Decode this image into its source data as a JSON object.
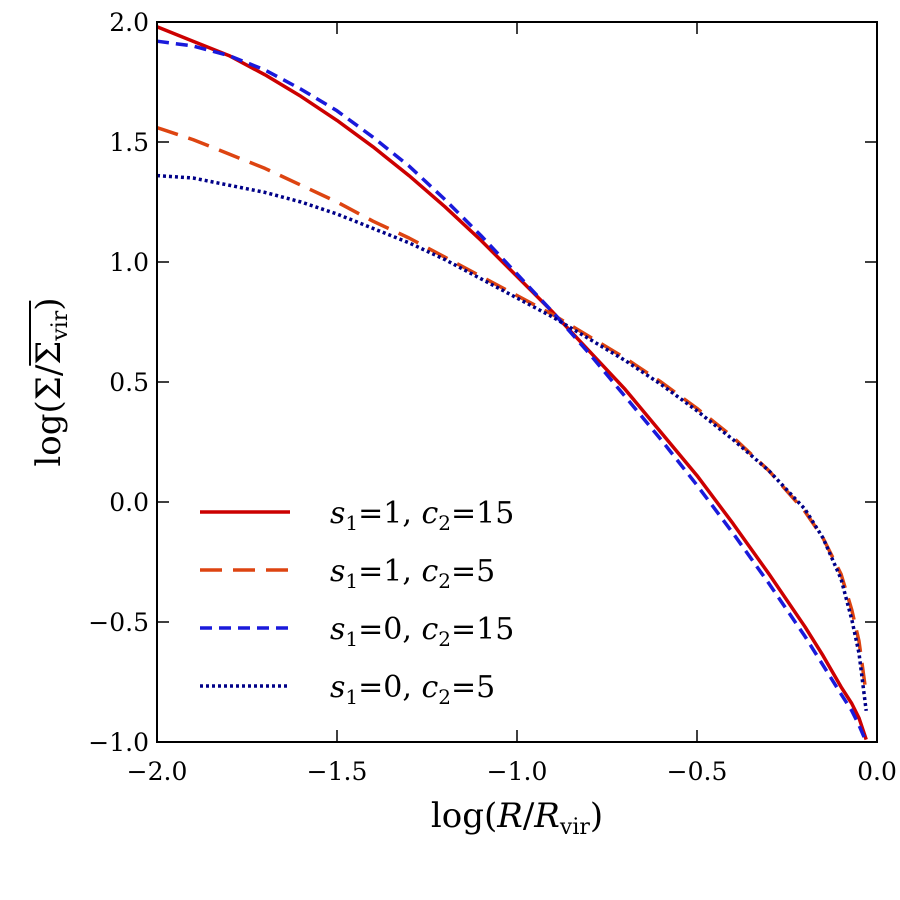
{
  "chart_data": {
    "type": "line",
    "title": "",
    "xlabel": {
      "prefix": "log(",
      "var": "R",
      "mid": "/",
      "var2": "R",
      "sub": "vir",
      "suffix": ")"
    },
    "ylabel": {
      "prefix": "log(Σ/",
      "bar_var": "Σ",
      "sub": "vir",
      "suffix": ")"
    },
    "xlim": [
      -2.0,
      0.0
    ],
    "ylim": [
      -1.0,
      2.0
    ],
    "x_ticks": [
      -2.0,
      -1.5,
      -1.0,
      -0.5,
      0.0
    ],
    "x_tick_labels": [
      "−2.0",
      "−1.5",
      "−1.0",
      "−0.5",
      "0.0"
    ],
    "y_ticks": [
      -1.0,
      -0.5,
      0.0,
      0.5,
      1.0,
      1.5,
      2.0
    ],
    "y_tick_labels": [
      "−1.0",
      "−0.5",
      "0.0",
      "0.5",
      "1.0",
      "1.5",
      "2.0"
    ],
    "grid": false,
    "legend_position": "lower-left",
    "series": [
      {
        "name": "s1=1, c2=15",
        "label": {
          "s": "s",
          "s_sub": "1",
          "s_val": "=1, ",
          "c": "c",
          "c_sub": "2",
          "c_val": "=15"
        },
        "color": "#cc0000",
        "style": "solid",
        "x": [
          -2.0,
          -1.9,
          -1.8,
          -1.7,
          -1.6,
          -1.5,
          -1.4,
          -1.3,
          -1.2,
          -1.1,
          -1.0,
          -0.9,
          -0.8,
          -0.7,
          -0.6,
          -0.5,
          -0.4,
          -0.3,
          -0.2,
          -0.15,
          -0.1,
          -0.07,
          -0.05,
          -0.03
        ],
        "y": [
          1.98,
          1.92,
          1.86,
          1.78,
          1.69,
          1.59,
          1.48,
          1.36,
          1.23,
          1.09,
          0.94,
          0.79,
          0.63,
          0.47,
          0.29,
          0.11,
          -0.09,
          -0.3,
          -0.52,
          -0.64,
          -0.77,
          -0.84,
          -0.9,
          -0.99
        ]
      },
      {
        "name": "s1=1, c2=5",
        "label": {
          "s": "s",
          "s_sub": "1",
          "s_val": "=1, ",
          "c": "c",
          "c_sub": "2",
          "c_val": "=5"
        },
        "color": "#dd4411",
        "style": "long-dash",
        "x": [
          -2.0,
          -1.9,
          -1.8,
          -1.7,
          -1.6,
          -1.5,
          -1.4,
          -1.3,
          -1.2,
          -1.1,
          -1.0,
          -0.9,
          -0.8,
          -0.7,
          -0.6,
          -0.5,
          -0.4,
          -0.3,
          -0.2,
          -0.15,
          -0.1,
          -0.07,
          -0.05,
          -0.03
        ],
        "y": [
          1.56,
          1.51,
          1.45,
          1.39,
          1.32,
          1.25,
          1.17,
          1.1,
          1.02,
          0.94,
          0.86,
          0.78,
          0.69,
          0.6,
          0.5,
          0.39,
          0.27,
          0.13,
          -0.04,
          -0.15,
          -0.3,
          -0.45,
          -0.58,
          -0.8
        ]
      },
      {
        "name": "s1=0, c2=15",
        "label": {
          "s": "s",
          "s_sub": "1",
          "s_val": "=0, ",
          "c": "c",
          "c_sub": "2",
          "c_val": "=15"
        },
        "color": "#1a1adb",
        "style": "short-dash",
        "x": [
          -2.0,
          -1.9,
          -1.8,
          -1.7,
          -1.6,
          -1.5,
          -1.4,
          -1.3,
          -1.2,
          -1.1,
          -1.0,
          -0.9,
          -0.8,
          -0.7,
          -0.6,
          -0.5,
          -0.4,
          -0.3,
          -0.2,
          -0.15,
          -0.1,
          -0.07,
          -0.05,
          -0.03
        ],
        "y": [
          1.92,
          1.9,
          1.86,
          1.8,
          1.72,
          1.63,
          1.52,
          1.4,
          1.26,
          1.11,
          0.95,
          0.79,
          0.62,
          0.44,
          0.26,
          0.07,
          -0.13,
          -0.34,
          -0.56,
          -0.68,
          -0.8,
          -0.87,
          -0.93,
          -1.0
        ]
      },
      {
        "name": "s1=0, c2=5",
        "label": {
          "s": "s",
          "s_sub": "1",
          "s_val": "=0, ",
          "c": "c",
          "c_sub": "2",
          "c_val": "=5"
        },
        "color": "#000088",
        "style": "dotted",
        "x": [
          -2.0,
          -1.9,
          -1.8,
          -1.7,
          -1.6,
          -1.5,
          -1.4,
          -1.3,
          -1.2,
          -1.1,
          -1.0,
          -0.9,
          -0.8,
          -0.7,
          -0.6,
          -0.5,
          -0.4,
          -0.3,
          -0.2,
          -0.15,
          -0.1,
          -0.07,
          -0.05,
          -0.03
        ],
        "y": [
          1.36,
          1.35,
          1.32,
          1.29,
          1.25,
          1.2,
          1.14,
          1.08,
          1.01,
          0.93,
          0.85,
          0.77,
          0.68,
          0.59,
          0.49,
          0.38,
          0.26,
          0.13,
          -0.03,
          -0.15,
          -0.32,
          -0.49,
          -0.63,
          -0.87
        ]
      }
    ]
  }
}
